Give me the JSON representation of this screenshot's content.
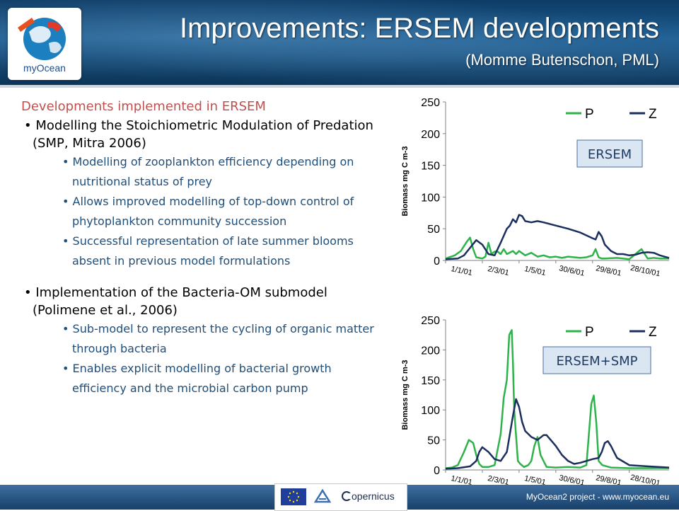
{
  "header": {
    "title": "Improvements: ERSEM developments",
    "subtitle": "(Momme Butenschon, PML)",
    "logo_text": "myOcean"
  },
  "content": {
    "heading": "Developments implemented in ERSEM",
    "sections": [
      {
        "bullet": "Modelling the Stoichiometric Modulation of Predation (SMP, Mitra 2006)",
        "subs": [
          "Modelling of zooplankton efficiency depending on nutritional status of prey",
          "Allows improved modelling of top-down control of phytoplankton community succession",
          "Successful representation of late summer blooms absent in previous model formulations"
        ]
      },
      {
        "bullet": "Implementation of the Bacteria-OM submodel (Polimene et al., 2006)",
        "subs": [
          "Sub-model to represent the cycling of organic matter through bacteria",
          "Enables explicit modelling of bacterial growth efficiency and the microbial carbon pump"
        ]
      }
    ]
  },
  "footer": {
    "text": "MyOcean2 project - www.myocean.eu",
    "logo_text": "opernicus"
  },
  "colors": {
    "P": "#2db34a",
    "Z": "#1b2f5e",
    "title_red": "#c0504d",
    "sub_blue": "#1f4e79"
  },
  "chart_data": [
    {
      "type": "line",
      "box_label": "ERSEM",
      "ylabel": "Biomass mg C m-3",
      "ylim": [
        0,
        250
      ],
      "yticks": [
        0,
        50,
        100,
        150,
        200,
        250
      ],
      "xlim": [
        0,
        365
      ],
      "xtick_labels": [
        "1/1/01",
        "2/3/01",
        "1/5/01",
        "30/6/01",
        "29/8/01",
        "28/10/01"
      ],
      "xtick_days": [
        0,
        60,
        120,
        180,
        240,
        300
      ],
      "series": [
        {
          "name": "P",
          "color": "#2db34a",
          "x": [
            0,
            15,
            25,
            35,
            40,
            45,
            50,
            55,
            60,
            65,
            70,
            75,
            80,
            85,
            90,
            95,
            100,
            110,
            115,
            120,
            130,
            140,
            150,
            160,
            170,
            180,
            190,
            200,
            210,
            220,
            230,
            240,
            245,
            250,
            255,
            260,
            280,
            300,
            310,
            320,
            330,
            340,
            350,
            365
          ],
          "y": [
            3,
            8,
            15,
            30,
            36,
            18,
            5,
            4,
            3,
            6,
            28,
            10,
            14,
            14,
            10,
            18,
            10,
            15,
            10,
            15,
            8,
            12,
            6,
            8,
            5,
            6,
            4,
            6,
            5,
            4,
            5,
            8,
            18,
            5,
            3,
            3,
            4,
            2,
            10,
            18,
            3,
            4,
            3,
            3
          ]
        },
        {
          "name": "Z",
          "color": "#1b2f5e",
          "x": [
            0,
            20,
            30,
            40,
            50,
            60,
            70,
            80,
            90,
            100,
            105,
            110,
            115,
            120,
            125,
            130,
            140,
            150,
            160,
            180,
            200,
            220,
            240,
            245,
            250,
            255,
            260,
            270,
            280,
            290,
            300,
            310,
            320,
            330,
            340,
            350,
            365
          ],
          "y": [
            2,
            3,
            8,
            20,
            32,
            25,
            10,
            8,
            28,
            50,
            55,
            65,
            60,
            72,
            70,
            62,
            60,
            62,
            60,
            55,
            50,
            44,
            35,
            33,
            45,
            38,
            25,
            15,
            10,
            10,
            8,
            9,
            12,
            13,
            12,
            8,
            4
          ]
        }
      ]
    },
    {
      "type": "line",
      "box_label": "ERSEM+SMP",
      "ylabel": "Biomass mg C m-3",
      "ylim": [
        0,
        250
      ],
      "yticks": [
        0,
        50,
        100,
        150,
        200,
        250
      ],
      "xlim": [
        0,
        365
      ],
      "xtick_labels": [
        "1/1/01",
        "2/3/01",
        "1/5/01",
        "30/6/01",
        "29/8/01",
        "28/10/01"
      ],
      "xtick_days": [
        0,
        60,
        120,
        180,
        240,
        300
      ],
      "series": [
        {
          "name": "P",
          "color": "#2db34a",
          "x": [
            0,
            10,
            20,
            30,
            38,
            45,
            50,
            55,
            60,
            70,
            80,
            90,
            95,
            100,
            104,
            108,
            110,
            112,
            118,
            122,
            128,
            135,
            140,
            145,
            150,
            155,
            165,
            180,
            200,
            220,
            230,
            238,
            242,
            246,
            250,
            256,
            270,
            300,
            330,
            365
          ],
          "y": [
            3,
            4,
            8,
            30,
            50,
            45,
            25,
            10,
            5,
            5,
            8,
            60,
            120,
            150,
            225,
            233,
            180,
            100,
            15,
            10,
            5,
            8,
            15,
            40,
            55,
            25,
            5,
            4,
            5,
            4,
            8,
            110,
            124,
            80,
            15,
            8,
            4,
            3,
            3,
            3
          ]
        },
        {
          "name": "Z",
          "color": "#1b2f5e",
          "x": [
            0,
            20,
            40,
            50,
            55,
            60,
            70,
            80,
            90,
            100,
            105,
            110,
            115,
            120,
            125,
            130,
            140,
            150,
            160,
            165,
            170,
            180,
            190,
            200,
            210,
            220,
            230,
            240,
            250,
            255,
            260,
            265,
            270,
            280,
            300,
            330,
            365
          ],
          "y": [
            2,
            3,
            6,
            15,
            30,
            38,
            30,
            18,
            15,
            30,
            60,
            90,
            118,
            105,
            80,
            65,
            55,
            50,
            58,
            58,
            52,
            40,
            25,
            15,
            10,
            12,
            15,
            18,
            20,
            30,
            45,
            48,
            40,
            20,
            8,
            6,
            4
          ]
        }
      ]
    }
  ]
}
